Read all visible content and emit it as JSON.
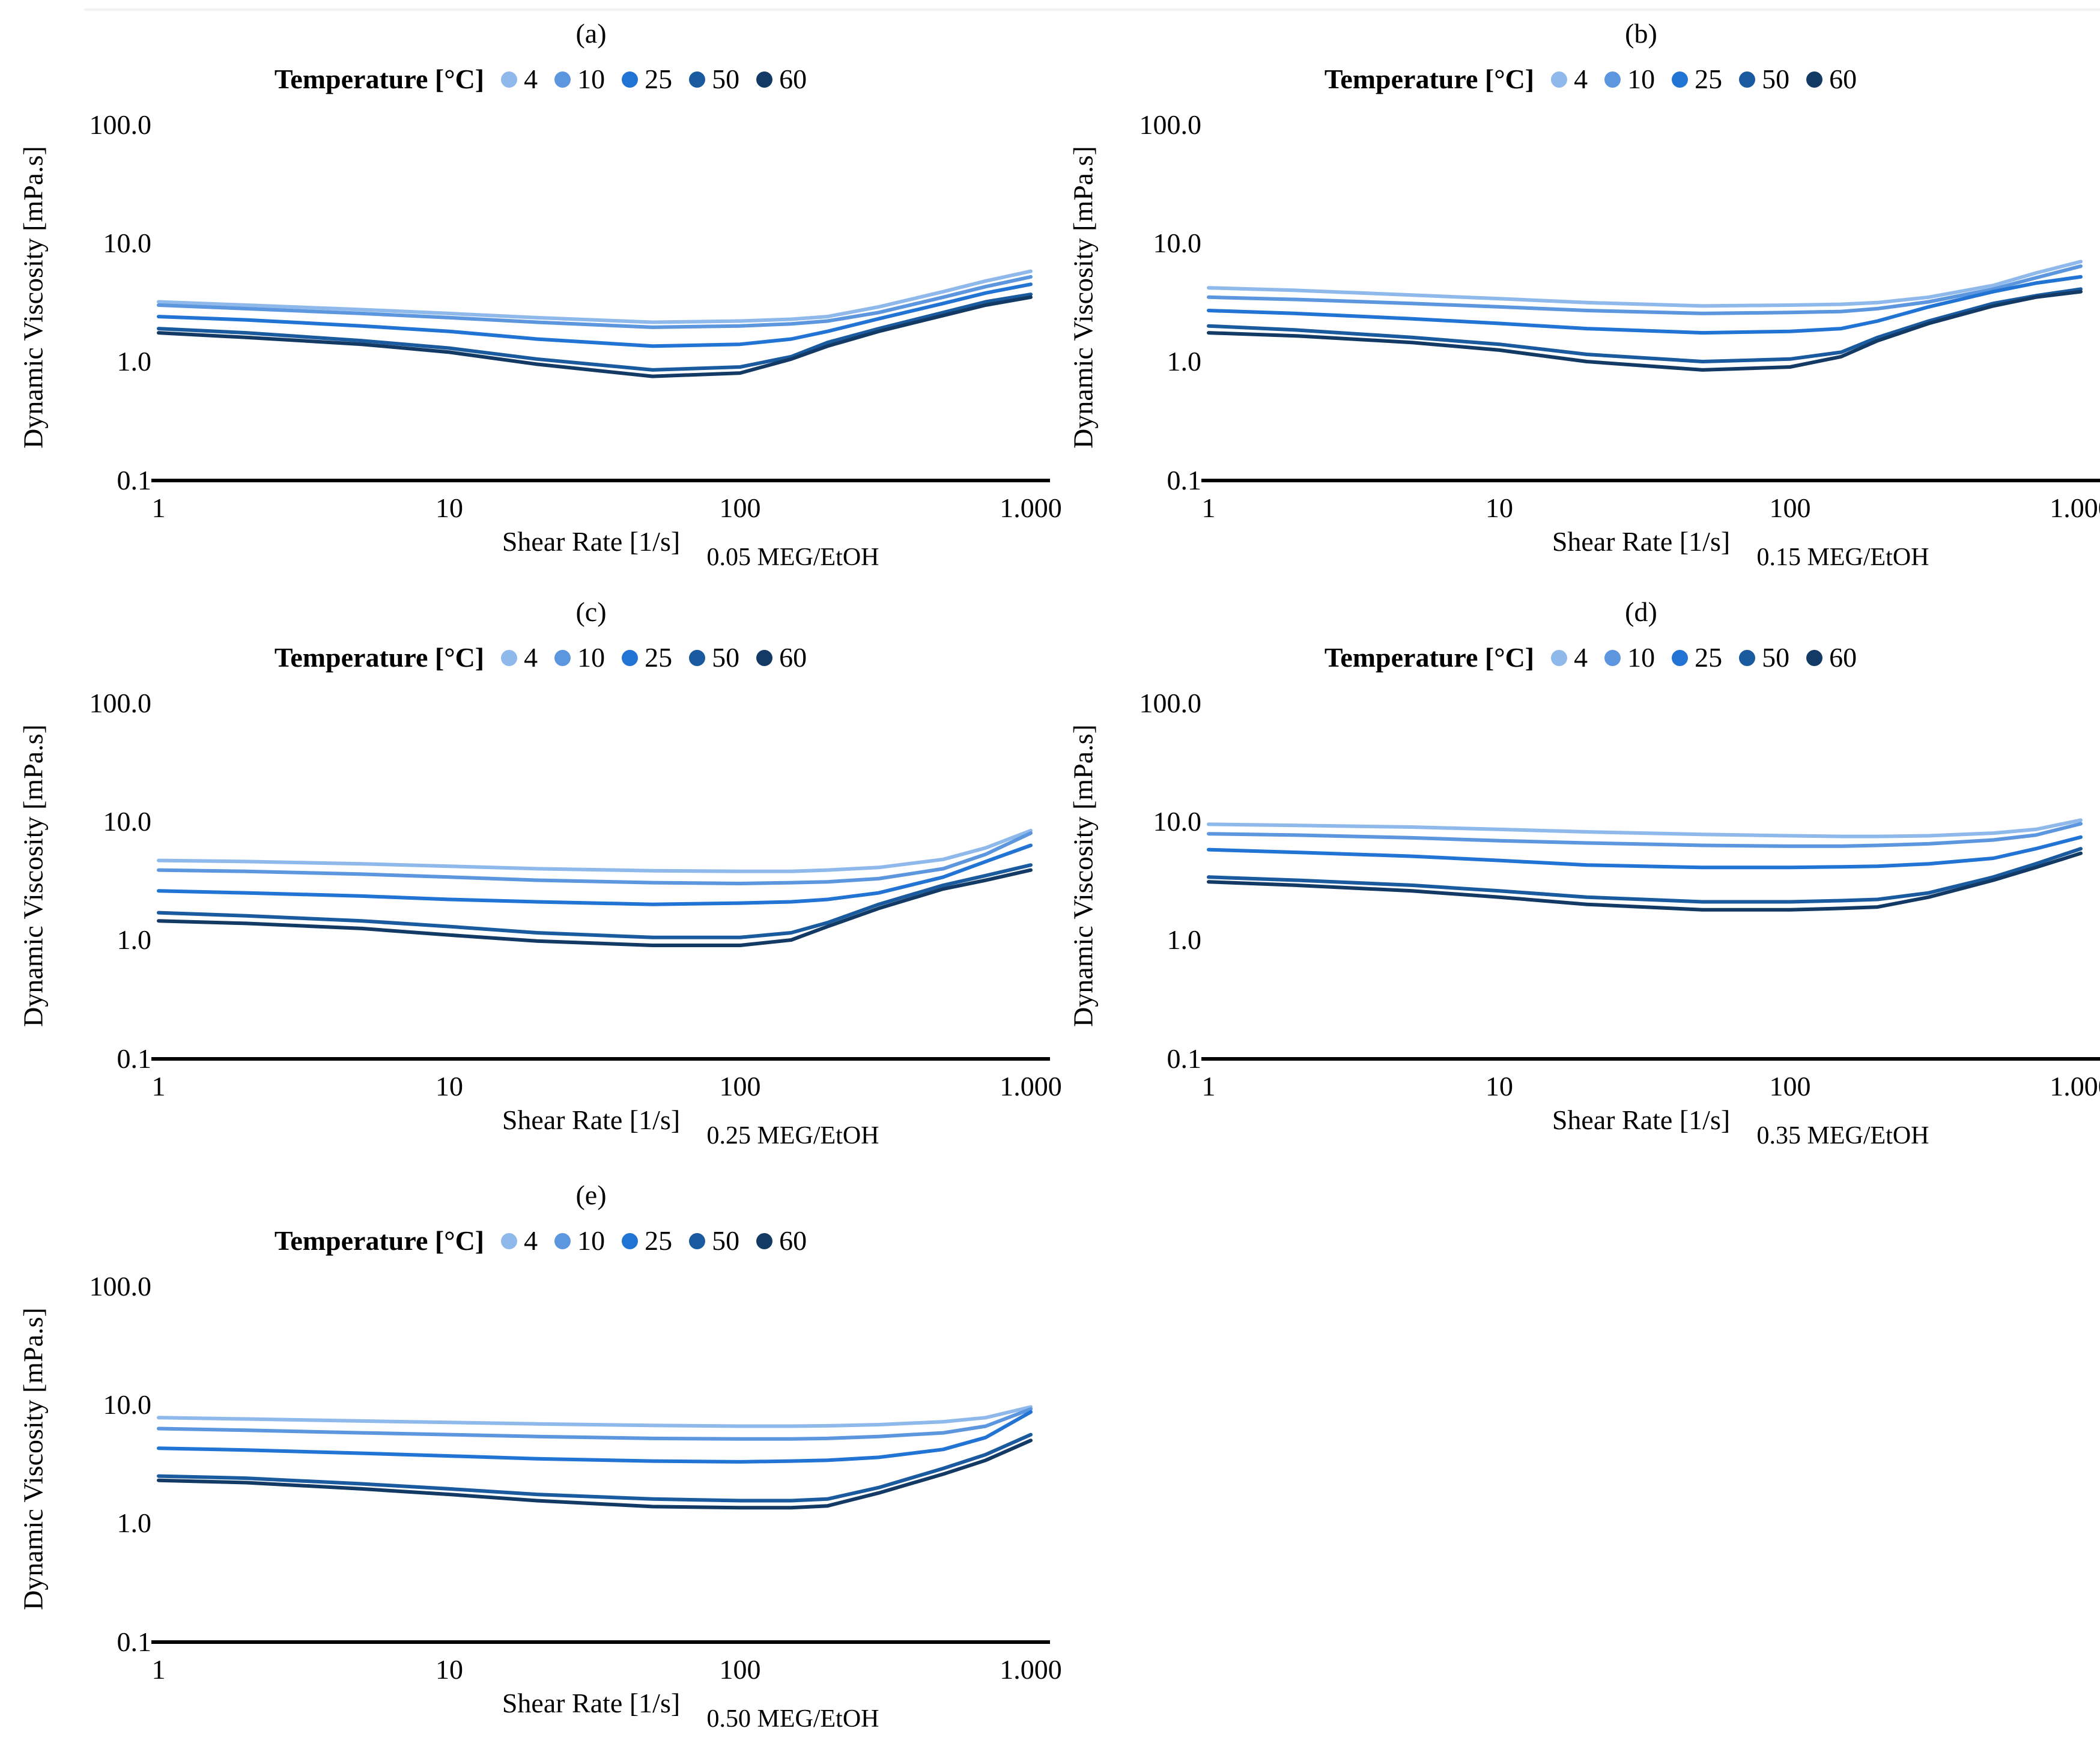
{
  "page": {
    "background": "#ffffff"
  },
  "legend": {
    "title": "Temperature [°C]",
    "entries": [
      {
        "label": "4",
        "color": "#8FB9EB"
      },
      {
        "label": "10",
        "color": "#5B96DE"
      },
      {
        "label": "25",
        "color": "#2173D4"
      },
      {
        "label": "50",
        "color": "#1A5A9E"
      },
      {
        "label": "60",
        "color": "#133A64"
      }
    ]
  },
  "axes": {
    "x_label": "Shear Rate [1/s]",
    "y_label": "Dynamic Viscosity [mPa.s]",
    "x_ticks": [
      "1",
      "10",
      "100",
      "1.000"
    ],
    "y_ticks": [
      "100.0",
      "10.0",
      "1.0",
      "0.1"
    ],
    "x_range": [
      1,
      1000
    ],
    "y_range": [
      0.1,
      100
    ],
    "scale": "log-log",
    "grid": "off",
    "legend_position": "top-center"
  },
  "chart_data": [
    {
      "type": "line",
      "letter": "(a)",
      "annotation": "0.05 MEG/EtOH",
      "x": [
        1,
        2,
        5,
        10,
        20,
        50,
        100,
        150,
        200,
        300,
        500,
        700,
        1000
      ],
      "series": [
        {
          "name": "4",
          "values": [
            3.2,
            3.0,
            2.75,
            2.55,
            2.35,
            2.15,
            2.2,
            2.28,
            2.4,
            2.9,
            3.9,
            4.8,
            5.8
          ]
        },
        {
          "name": "10",
          "values": [
            3.0,
            2.8,
            2.55,
            2.35,
            2.15,
            1.95,
            2.0,
            2.08,
            2.2,
            2.6,
            3.5,
            4.3,
            5.2
          ]
        },
        {
          "name": "25",
          "values": [
            2.4,
            2.25,
            2.0,
            1.8,
            1.55,
            1.35,
            1.4,
            1.55,
            1.8,
            2.3,
            3.1,
            3.8,
            4.5
          ]
        },
        {
          "name": "50",
          "values": [
            1.9,
            1.75,
            1.5,
            1.3,
            1.05,
            0.85,
            0.9,
            1.1,
            1.45,
            1.9,
            2.6,
            3.2,
            3.7
          ]
        },
        {
          "name": "60",
          "values": [
            1.75,
            1.6,
            1.4,
            1.2,
            0.95,
            0.75,
            0.8,
            1.05,
            1.35,
            1.8,
            2.45,
            3.0,
            3.5
          ]
        }
      ]
    },
    {
      "type": "line",
      "letter": "(b)",
      "annotation": "0.15 MEG/EtOH",
      "x": [
        1,
        2,
        5,
        10,
        20,
        50,
        100,
        150,
        200,
        300,
        500,
        700,
        1000
      ],
      "series": [
        {
          "name": "4",
          "values": [
            4.2,
            4.0,
            3.65,
            3.4,
            3.15,
            2.95,
            3.0,
            3.05,
            3.15,
            3.5,
            4.4,
            5.6,
            7.0
          ]
        },
        {
          "name": "10",
          "values": [
            3.5,
            3.35,
            3.1,
            2.9,
            2.7,
            2.55,
            2.6,
            2.65,
            2.8,
            3.2,
            4.1,
            5.1,
            6.4
          ]
        },
        {
          "name": "25",
          "values": [
            2.7,
            2.55,
            2.3,
            2.1,
            1.9,
            1.75,
            1.8,
            1.9,
            2.2,
            2.9,
            3.9,
            4.6,
            5.2
          ]
        },
        {
          "name": "50",
          "values": [
            2.0,
            1.85,
            1.6,
            1.4,
            1.15,
            1.0,
            1.05,
            1.2,
            1.6,
            2.2,
            3.1,
            3.6,
            4.1
          ]
        },
        {
          "name": "60",
          "values": [
            1.75,
            1.65,
            1.45,
            1.25,
            1.0,
            0.85,
            0.9,
            1.1,
            1.5,
            2.1,
            2.95,
            3.5,
            3.9
          ]
        }
      ]
    },
    {
      "type": "line",
      "letter": "(c)",
      "annotation": "0.25 MEG/EtOH",
      "x": [
        1,
        2,
        5,
        10,
        20,
        50,
        100,
        150,
        200,
        300,
        500,
        700,
        1000
      ],
      "series": [
        {
          "name": "4",
          "values": [
            4.7,
            4.6,
            4.4,
            4.2,
            4.0,
            3.85,
            3.8,
            3.8,
            3.9,
            4.1,
            4.8,
            6.0,
            8.4
          ]
        },
        {
          "name": "10",
          "values": [
            3.9,
            3.8,
            3.6,
            3.4,
            3.2,
            3.05,
            3.0,
            3.05,
            3.1,
            3.3,
            4.0,
            5.3,
            8.0
          ]
        },
        {
          "name": "25",
          "values": [
            2.6,
            2.5,
            2.35,
            2.2,
            2.1,
            2.0,
            2.05,
            2.1,
            2.2,
            2.5,
            3.4,
            4.6,
            6.3
          ]
        },
        {
          "name": "50",
          "values": [
            1.7,
            1.6,
            1.45,
            1.3,
            1.15,
            1.05,
            1.05,
            1.15,
            1.4,
            2.0,
            2.9,
            3.5,
            4.3
          ]
        },
        {
          "name": "60",
          "values": [
            1.45,
            1.38,
            1.25,
            1.1,
            0.98,
            0.9,
            0.9,
            1.0,
            1.3,
            1.85,
            2.7,
            3.2,
            3.9
          ]
        }
      ]
    },
    {
      "type": "line",
      "letter": "(d)",
      "annotation": "0.35 MEG/EtOH",
      "x": [
        1,
        2,
        5,
        10,
        20,
        50,
        100,
        150,
        200,
        300,
        500,
        700,
        1000
      ],
      "series": [
        {
          "name": "4",
          "values": [
            9.5,
            9.3,
            9.0,
            8.6,
            8.2,
            7.8,
            7.6,
            7.5,
            7.5,
            7.6,
            8.0,
            8.6,
            10.3
          ]
        },
        {
          "name": "10",
          "values": [
            7.9,
            7.7,
            7.3,
            6.9,
            6.6,
            6.3,
            6.2,
            6.2,
            6.3,
            6.5,
            7.0,
            7.7,
            9.6
          ]
        },
        {
          "name": "25",
          "values": [
            5.8,
            5.5,
            5.1,
            4.7,
            4.3,
            4.1,
            4.1,
            4.15,
            4.2,
            4.4,
            4.9,
            5.9,
            7.4
          ]
        },
        {
          "name": "50",
          "values": [
            3.4,
            3.2,
            2.9,
            2.6,
            2.3,
            2.1,
            2.1,
            2.15,
            2.2,
            2.5,
            3.4,
            4.4,
            5.9
          ]
        },
        {
          "name": "60",
          "values": [
            3.1,
            2.9,
            2.6,
            2.3,
            2.0,
            1.8,
            1.8,
            1.85,
            1.9,
            2.3,
            3.2,
            4.1,
            5.4
          ]
        }
      ]
    },
    {
      "type": "line",
      "letter": "(e)",
      "annotation": "0.50 MEG/EtOH",
      "x": [
        1,
        2,
        5,
        10,
        20,
        50,
        100,
        150,
        200,
        300,
        500,
        700,
        1000
      ],
      "series": [
        {
          "name": "4",
          "values": [
            7.8,
            7.6,
            7.3,
            7.1,
            6.9,
            6.7,
            6.6,
            6.6,
            6.65,
            6.8,
            7.2,
            7.8,
            9.6
          ]
        },
        {
          "name": "10",
          "values": [
            6.3,
            6.1,
            5.8,
            5.6,
            5.4,
            5.2,
            5.15,
            5.15,
            5.2,
            5.4,
            5.8,
            6.6,
            9.2
          ]
        },
        {
          "name": "25",
          "values": [
            4.3,
            4.15,
            3.9,
            3.7,
            3.5,
            3.35,
            3.3,
            3.35,
            3.4,
            3.6,
            4.2,
            5.3,
            8.7
          ]
        },
        {
          "name": "50",
          "values": [
            2.5,
            2.4,
            2.15,
            1.95,
            1.75,
            1.6,
            1.55,
            1.55,
            1.6,
            2.0,
            2.9,
            3.8,
            5.6
          ]
        },
        {
          "name": "60",
          "values": [
            2.3,
            2.2,
            1.95,
            1.75,
            1.55,
            1.38,
            1.35,
            1.35,
            1.4,
            1.8,
            2.6,
            3.4,
            5.0
          ]
        }
      ]
    }
  ]
}
